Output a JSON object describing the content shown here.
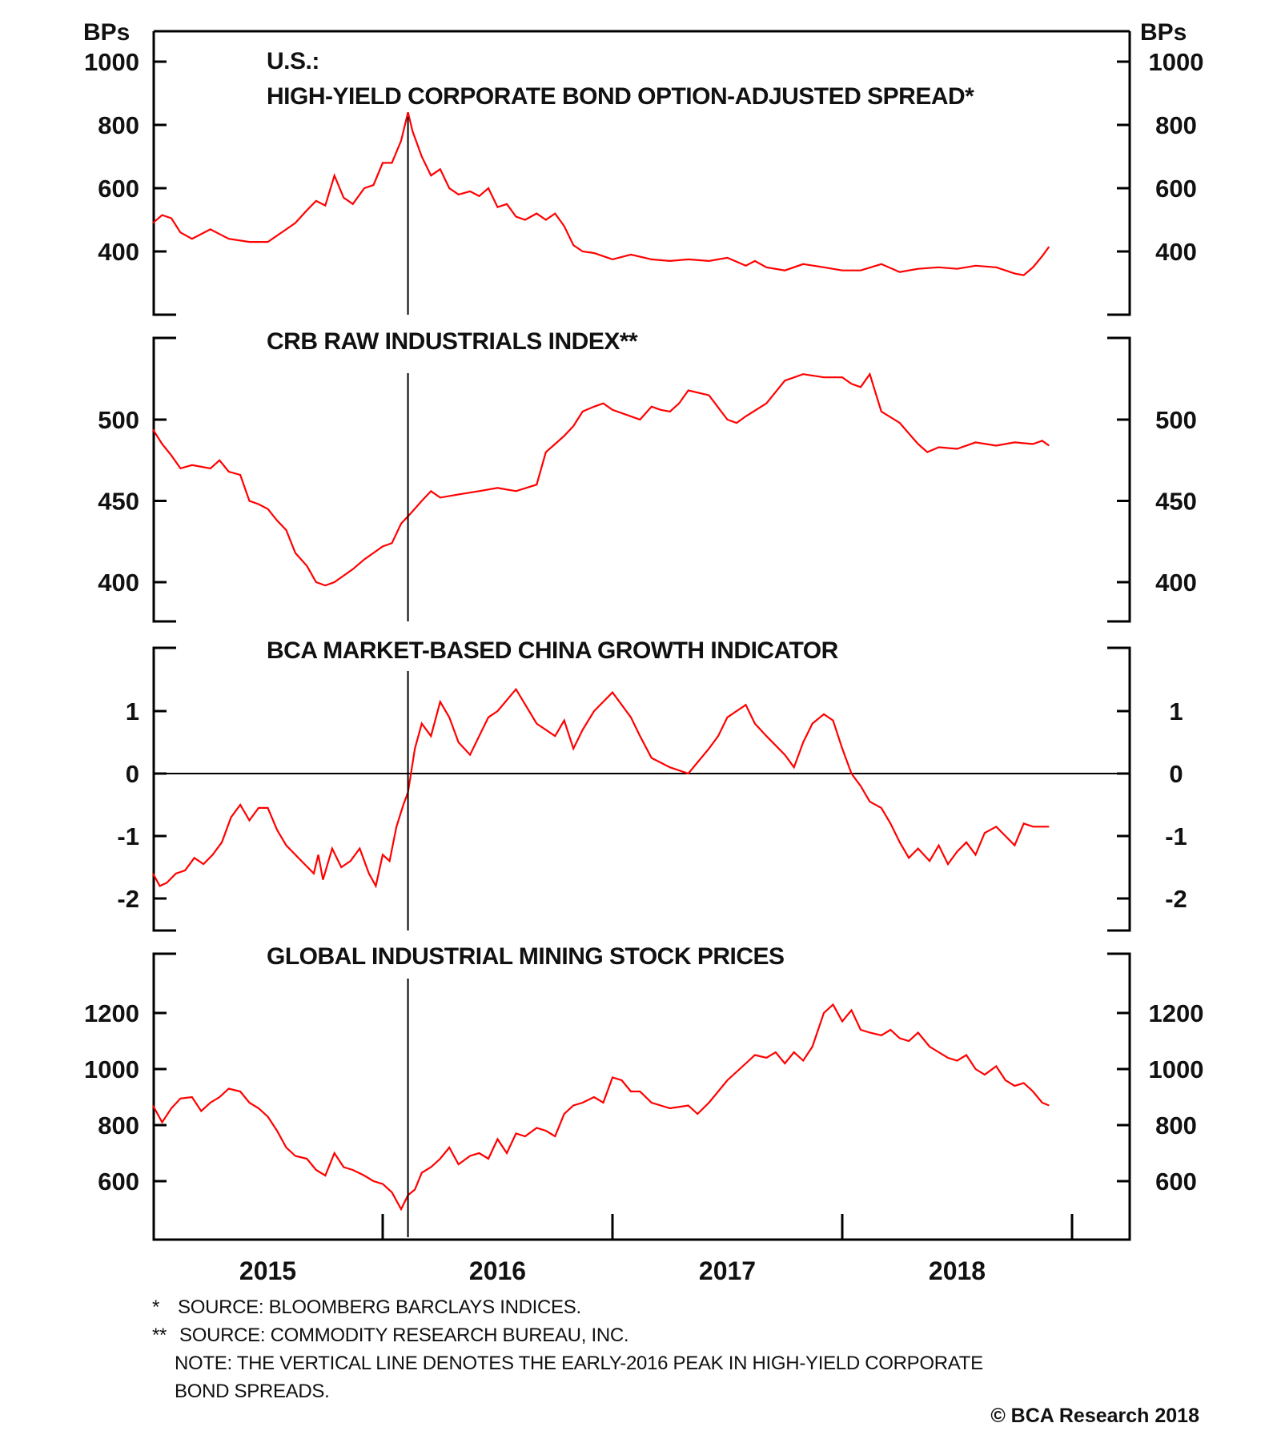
{
  "chart_data": {
    "type": "line",
    "x_ticks": [
      "2015",
      "2016",
      "2017",
      "2018"
    ],
    "x_range": [
      2015.0,
      2019.0
    ],
    "marker_line": {
      "x": 2016.11,
      "description": "early-2016 peak in high-yield corporate bond spreads"
    },
    "panels": [
      {
        "title_lines": [
          "U.S.:",
          "HIGH-YIELD CORPORATE BOND OPTION-ADJUSTED SPREAD*"
        ],
        "ylabel": "BPs",
        "ylim": [
          200,
          1100
        ],
        "yticks": [
          400,
          600,
          800,
          1000
        ],
        "ytick_labels": [
          "400",
          "600",
          "800",
          "1000"
        ],
        "series": [
          {
            "name": "HY OAS",
            "color": "#ff0000",
            "x": [
              2015.0,
              2015.04,
              2015.08,
              2015.12,
              2015.17,
              2015.25,
              2015.29,
              2015.33,
              2015.42,
              2015.5,
              2015.58,
              2015.62,
              2015.67,
              2015.71,
              2015.75,
              2015.79,
              2015.83,
              2015.87,
              2015.92,
              2015.96,
              2016.0,
              2016.04,
              2016.08,
              2016.11,
              2016.13,
              2016.17,
              2016.21,
              2016.25,
              2016.29,
              2016.33,
              2016.38,
              2016.42,
              2016.46,
              2016.5,
              2016.54,
              2016.58,
              2016.62,
              2016.67,
              2016.71,
              2016.75,
              2016.79,
              2016.83,
              2016.87,
              2016.92,
              2016.96,
              2017.0,
              2017.08,
              2017.17,
              2017.25,
              2017.33,
              2017.42,
              2017.5,
              2017.58,
              2017.62,
              2017.67,
              2017.75,
              2017.83,
              2017.92,
              2018.0,
              2018.08,
              2018.17,
              2018.25,
              2018.33,
              2018.42,
              2018.5,
              2018.58,
              2018.67,
              2018.75,
              2018.79,
              2018.83,
              2018.87,
              2018.9
            ],
            "y": [
              490,
              515,
              505,
              460,
              440,
              470,
              455,
              440,
              430,
              430,
              470,
              490,
              530,
              560,
              545,
              640,
              570,
              550,
              600,
              610,
              680,
              680,
              750,
              840,
              780,
              700,
              640,
              660,
              600,
              580,
              590,
              575,
              600,
              540,
              550,
              510,
              500,
              520,
              500,
              520,
              480,
              420,
              400,
              395,
              385,
              375,
              390,
              375,
              370,
              375,
              370,
              380,
              355,
              370,
              350,
              340,
              360,
              350,
              340,
              340,
              360,
              335,
              345,
              350,
              345,
              355,
              350,
              330,
              325,
              350,
              385,
              415
            ]
          }
        ]
      },
      {
        "title": "CRB RAW INDUSTRIALS INDEX**",
        "ylabel": "",
        "ylim": [
          370,
          545
        ],
        "yticks": [
          400,
          450,
          500
        ],
        "ytick_labels": [
          "400",
          "450",
          "500"
        ],
        "series": [
          {
            "name": "CRB Raw Industrials",
            "color": "#ff0000",
            "x": [
              2015.0,
              2015.04,
              2015.08,
              2015.12,
              2015.17,
              2015.25,
              2015.29,
              2015.33,
              2015.38,
              2015.42,
              2015.46,
              2015.5,
              2015.54,
              2015.58,
              2015.62,
              2015.67,
              2015.71,
              2015.75,
              2015.79,
              2015.83,
              2015.87,
              2015.92,
              2015.96,
              2016.0,
              2016.04,
              2016.08,
              2016.12,
              2016.17,
              2016.21,
              2016.25,
              2016.33,
              2016.42,
              2016.5,
              2016.58,
              2016.67,
              2016.71,
              2016.75,
              2016.79,
              2016.83,
              2016.87,
              2016.92,
              2016.96,
              2017.0,
              2017.08,
              2017.12,
              2017.17,
              2017.21,
              2017.25,
              2017.29,
              2017.33,
              2017.42,
              2017.5,
              2017.54,
              2017.58,
              2017.67,
              2017.75,
              2017.83,
              2017.92,
              2018.0,
              2018.04,
              2018.08,
              2018.12,
              2018.17,
              2018.25,
              2018.33,
              2018.37,
              2018.42,
              2018.5,
              2018.58,
              2018.67,
              2018.75,
              2018.83,
              2018.87,
              2018.9
            ],
            "y": [
              494,
              485,
              478,
              470,
              472,
              470,
              475,
              468,
              466,
              450,
              448,
              445,
              438,
              432,
              418,
              410,
              400,
              398,
              400,
              404,
              408,
              414,
              418,
              422,
              424,
              436,
              442,
              450,
              456,
              452,
              454,
              456,
              458,
              456,
              460,
              480,
              485,
              490,
              496,
              505,
              508,
              510,
              506,
              502,
              500,
              508,
              506,
              505,
              510,
              518,
              515,
              500,
              498,
              502,
              510,
              524,
              528,
              526,
              526,
              522,
              520,
              528,
              505,
              498,
              485,
              480,
              483,
              482,
              486,
              484,
              486,
              485,
              487,
              484
            ]
          }
        ]
      },
      {
        "title": "BCA MARKET-BASED CHINA GROWTH INDICATOR",
        "ylabel": "",
        "ylim": [
          -2.5,
          2.0
        ],
        "yticks": [
          -2,
          -1,
          0,
          1
        ],
        "ytick_labels": [
          "-2",
          "-1",
          "0",
          "1"
        ],
        "zero_line": true,
        "series": [
          {
            "name": "China Growth Indicator",
            "color": "#ff0000",
            "x": [
              2015.0,
              2015.03,
              2015.06,
              2015.1,
              2015.14,
              2015.18,
              2015.22,
              2015.26,
              2015.3,
              2015.34,
              2015.38,
              2015.42,
              2015.46,
              2015.5,
              2015.54,
              2015.58,
              2015.62,
              2015.66,
              2015.7,
              2015.72,
              2015.74,
              2015.78,
              2015.82,
              2015.86,
              2015.9,
              2015.94,
              2015.97,
              2016.0,
              2016.03,
              2016.06,
              2016.09,
              2016.11,
              2016.14,
              2016.17,
              2016.21,
              2016.25,
              2016.29,
              2016.33,
              2016.38,
              2016.42,
              2016.46,
              2016.5,
              2016.58,
              2016.67,
              2016.75,
              2016.79,
              2016.83,
              2016.87,
              2016.92,
              2017.0,
              2017.08,
              2017.12,
              2017.17,
              2017.25,
              2017.33,
              2017.42,
              2017.46,
              2017.5,
              2017.58,
              2017.62,
              2017.67,
              2017.75,
              2017.79,
              2017.83,
              2017.87,
              2017.92,
              2017.96,
              2018.0,
              2018.04,
              2018.08,
              2018.12,
              2018.17,
              2018.21,
              2018.25,
              2018.29,
              2018.33,
              2018.38,
              2018.42,
              2018.46,
              2018.5,
              2018.54,
              2018.58,
              2018.62,
              2018.67,
              2018.71,
              2018.75,
              2018.79,
              2018.83,
              2018.87,
              2018.9
            ],
            "y": [
              -1.6,
              -1.8,
              -1.75,
              -1.6,
              -1.55,
              -1.35,
              -1.45,
              -1.3,
              -1.1,
              -0.7,
              -0.5,
              -0.75,
              -0.55,
              -0.55,
              -0.9,
              -1.15,
              -1.3,
              -1.45,
              -1.6,
              -1.3,
              -1.7,
              -1.2,
              -1.5,
              -1.4,
              -1.2,
              -1.6,
              -1.8,
              -1.3,
              -1.4,
              -0.85,
              -0.5,
              -0.3,
              0.4,
              0.8,
              0.6,
              1.15,
              0.9,
              0.5,
              0.3,
              0.6,
              0.9,
              1.0,
              1.35,
              0.8,
              0.6,
              0.85,
              0.4,
              0.7,
              1.0,
              1.3,
              0.9,
              0.6,
              0.25,
              0.1,
              0.0,
              0.4,
              0.6,
              0.9,
              1.1,
              0.8,
              0.6,
              0.3,
              0.1,
              0.5,
              0.8,
              0.95,
              0.85,
              0.4,
              0.0,
              -0.2,
              -0.45,
              -0.55,
              -0.8,
              -1.1,
              -1.35,
              -1.2,
              -1.4,
              -1.15,
              -1.45,
              -1.25,
              -1.1,
              -1.3,
              -0.95,
              -0.85,
              -1.0,
              -1.15,
              -0.8,
              -0.85,
              -0.85,
              -0.85
            ]
          }
        ]
      },
      {
        "title": "GLOBAL INDUSTRIAL MINING STOCK PRICES",
        "ylabel": "",
        "ylim": [
          400,
          1400
        ],
        "yticks": [
          600,
          800,
          1000,
          1200
        ],
        "ytick_labels": [
          "600",
          "800",
          "1000",
          "1200"
        ],
        "series": [
          {
            "name": "Global Industrial Mining Stocks",
            "color": "#ff0000",
            "x": [
              2015.0,
              2015.04,
              2015.08,
              2015.12,
              2015.17,
              2015.21,
              2015.25,
              2015.29,
              2015.33,
              2015.38,
              2015.42,
              2015.46,
              2015.5,
              2015.54,
              2015.58,
              2015.62,
              2015.67,
              2015.71,
              2015.75,
              2015.79,
              2015.83,
              2015.87,
              2015.92,
              2015.96,
              2016.0,
              2016.04,
              2016.08,
              2016.11,
              2016.14,
              2016.17,
              2016.21,
              2016.25,
              2016.29,
              2016.33,
              2016.38,
              2016.42,
              2016.46,
              2016.5,
              2016.54,
              2016.58,
              2016.62,
              2016.67,
              2016.71,
              2016.75,
              2016.79,
              2016.83,
              2016.87,
              2016.92,
              2016.96,
              2017.0,
              2017.04,
              2017.08,
              2017.12,
              2017.17,
              2017.25,
              2017.33,
              2017.37,
              2017.42,
              2017.5,
              2017.54,
              2017.58,
              2017.62,
              2017.67,
              2017.71,
              2017.75,
              2017.79,
              2017.83,
              2017.87,
              2017.92,
              2017.96,
              2018.0,
              2018.04,
              2018.08,
              2018.12,
              2018.17,
              2018.21,
              2018.25,
              2018.29,
              2018.33,
              2018.38,
              2018.42,
              2018.46,
              2018.5,
              2018.54,
              2018.58,
              2018.62,
              2018.67,
              2018.71,
              2018.75,
              2018.79,
              2018.83,
              2018.87,
              2018.9
            ],
            "y": [
              870,
              810,
              860,
              895,
              900,
              850,
              880,
              900,
              930,
              920,
              880,
              860,
              830,
              780,
              720,
              690,
              680,
              640,
              620,
              700,
              650,
              640,
              620,
              600,
              590,
              560,
              500,
              550,
              570,
              630,
              650,
              680,
              720,
              660,
              690,
              700,
              680,
              750,
              700,
              770,
              760,
              790,
              780,
              760,
              840,
              870,
              880,
              900,
              880,
              970,
              960,
              920,
              920,
              880,
              860,
              870,
              840,
              880,
              960,
              990,
              1020,
              1050,
              1040,
              1060,
              1020,
              1060,
              1030,
              1080,
              1200,
              1230,
              1170,
              1210,
              1140,
              1130,
              1120,
              1140,
              1110,
              1100,
              1130,
              1080,
              1060,
              1040,
              1030,
              1050,
              1000,
              980,
              1010,
              960,
              940,
              950,
              920,
              880,
              870
            ]
          }
        ]
      }
    ]
  },
  "footnotes": [
    {
      "marker": "*",
      "text": "SOURCE: BLOOMBERG BARCLAYS INDICES."
    },
    {
      "marker": "**",
      "text": "SOURCE: COMMODITY RESEARCH BUREAU, INC."
    },
    {
      "marker": "",
      "text": "NOTE: THE VERTICAL LINE DENOTES THE EARLY-2016 PEAK IN HIGH-YIELD CORPORATE"
    },
    {
      "marker": "",
      "text": "BOND SPREADS."
    }
  ],
  "copyright": "© BCA Research 2018"
}
